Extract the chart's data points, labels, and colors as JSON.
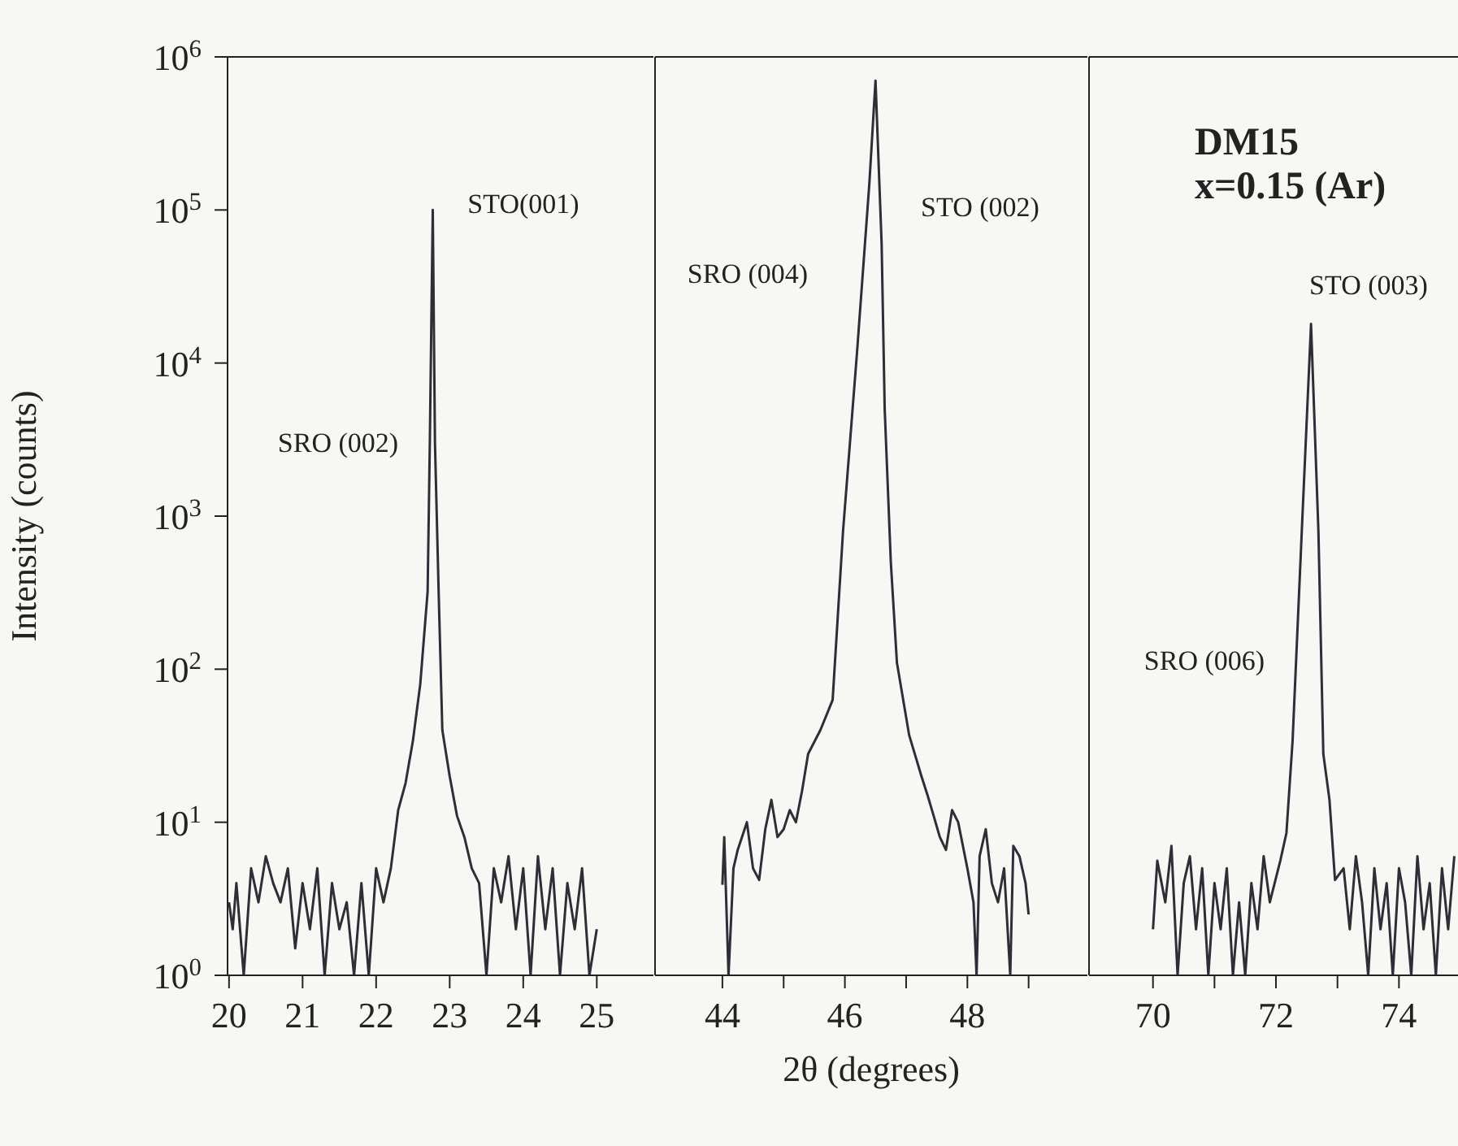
{
  "chart_data": [
    {
      "type": "line",
      "ylabel": "Intensity (counts)",
      "log": true,
      "xlim": [
        19.98,
        25.77
      ],
      "xticks": [
        20,
        21,
        22,
        23,
        24,
        25
      ],
      "ylim": [
        1,
        1000000
      ],
      "yticks": [
        {
          "value": 1,
          "label": "10$^{0}$"
        },
        {
          "value": 10,
          "label": "10$^{1}$"
        },
        {
          "value": 100,
          "label": "10$^{2}$"
        },
        {
          "value": 1000,
          "label": "10$^{3}$"
        },
        {
          "value": 10000,
          "label": "10$^{4}$"
        },
        {
          "value": 100000,
          "label": "10$^{5}$"
        },
        {
          "value": 1000000,
          "label": "10$^{6}$"
        }
      ],
      "x": [
        20.0,
        20.05,
        20.1,
        20.2,
        20.3,
        20.4,
        20.5,
        20.6,
        20.7,
        20.8,
        20.9,
        21.0,
        21.1,
        21.2,
        21.3,
        21.4,
        21.5,
        21.6,
        21.7,
        21.8,
        21.9,
        22.0,
        22.1,
        22.2,
        22.3,
        22.4,
        22.5,
        22.6,
        22.7,
        22.73,
        22.77,
        22.8,
        22.85,
        22.9,
        23.0,
        23.1,
        23.2,
        23.3,
        23.4,
        23.5,
        23.6,
        23.7,
        23.8,
        23.9,
        24.0,
        24.1,
        24.2,
        24.3,
        24.4,
        24.5,
        24.6,
        24.7,
        24.8,
        24.9,
        25.0
      ],
      "series": [
        {
          "color": "#2e2e38",
          "values": [
            3,
            2,
            4,
            1,
            5,
            3,
            6,
            4,
            3,
            5,
            1.5,
            4,
            2,
            5,
            1,
            4,
            2,
            3,
            1,
            4,
            1,
            5,
            3,
            5,
            12,
            18,
            34,
            80,
            320,
            3000,
            100000,
            3000,
            320,
            40,
            20,
            11,
            8,
            5,
            4,
            1,
            5,
            3,
            6,
            2,
            5,
            1,
            6,
            2,
            5,
            1,
            4,
            2,
            5,
            1,
            2
          ]
        }
      ],
      "annotations": [
        "SRO (002)",
        "STO(001)"
      ]
    },
    {
      "type": "line",
      "xlabel": "2θ (degrees)",
      "log": true,
      "tick_labels": "x",
      "xlim": [
        42.9,
        49.96
      ],
      "xticks": [
        44,
        {
          "value": 45,
          "label": null
        },
        46,
        {
          "value": 47,
          "label": null
        },
        48,
        {
          "value": 49,
          "label": null
        }
      ],
      "ylim": [
        1,
        1000000
      ],
      "x": [
        44.0,
        44.03,
        44.1,
        44.18,
        44.25,
        44.4,
        44.5,
        44.6,
        44.7,
        44.8,
        44.9,
        45.0,
        45.1,
        45.2,
        45.3,
        45.4,
        45.6,
        45.8,
        45.97,
        46.2,
        46.4,
        46.5,
        46.6,
        46.65,
        46.75,
        46.85,
        47.05,
        47.25,
        47.35,
        47.45,
        47.55,
        47.65,
        47.75,
        47.85,
        48.0,
        48.1,
        48.15,
        48.2,
        48.3,
        48.4,
        48.5,
        48.6,
        48.7,
        48.75,
        48.85,
        48.95,
        49.0
      ],
      "series": [
        {
          "color": "#2e2e38",
          "values": [
            3.9,
            8,
            1,
            5,
            6.6,
            10,
            5,
            4.2,
            9,
            14,
            8,
            9,
            12,
            10,
            16,
            28,
            40,
            63,
            800,
            12000,
            150000,
            700000,
            60000,
            5000,
            500,
            110,
            37,
            20,
            15,
            11,
            8,
            6.6,
            12,
            10,
            5,
            3,
            1,
            6,
            9,
            4,
            3,
            5,
            1,
            7,
            6,
            4,
            2.5
          ]
        }
      ],
      "annotations": [
        "SRO (004)",
        "STO (002)"
      ]
    },
    {
      "type": "line",
      "log": true,
      "tick_labels": "x",
      "xlim": [
        68.96,
        74.96
      ],
      "xticks": [
        70,
        {
          "value": 71,
          "label": null
        },
        72,
        {
          "value": 73,
          "label": null
        },
        74
      ],
      "ylim": [
        1,
        1000000
      ],
      "x": [
        70.0,
        70.07,
        70.2,
        70.3,
        70.4,
        70.5,
        70.6,
        70.7,
        70.8,
        70.9,
        71.0,
        71.1,
        71.2,
        71.3,
        71.4,
        71.5,
        71.6,
        71.7,
        71.8,
        71.9,
        72.07,
        72.17,
        72.27,
        72.42,
        72.57,
        72.69,
        72.77,
        72.87,
        72.96,
        73.1,
        73.2,
        73.3,
        73.4,
        73.5,
        73.6,
        73.7,
        73.8,
        73.9,
        74.0,
        74.1,
        74.2,
        74.3,
        74.4,
        74.5,
        74.6,
        74.7,
        74.8,
        74.9
      ],
      "series": [
        {
          "color": "#2e2e38",
          "values": [
            2,
            5.6,
            3,
            7,
            1,
            4,
            6,
            2,
            5,
            1,
            4,
            2,
            5,
            1,
            3,
            1,
            4,
            2,
            6,
            3,
            5.6,
            8.5,
            34,
            800,
            18000,
            800,
            28,
            14,
            4.2,
            5,
            2,
            6,
            3,
            1,
            5,
            2,
            4,
            1,
            5,
            3,
            1,
            6,
            2,
            4,
            1,
            5,
            2,
            6
          ]
        }
      ],
      "annotations": [
        "DM15",
        "x=0.15 (Ar)",
        "SRO (006)",
        "STO (003)"
      ]
    }
  ]
}
